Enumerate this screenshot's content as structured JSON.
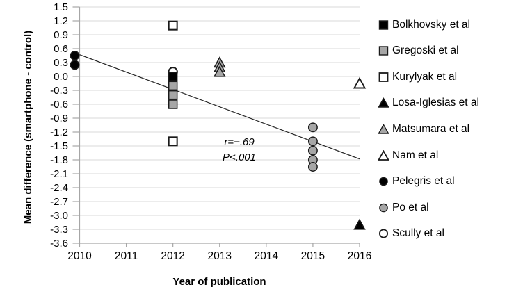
{
  "chart_data": {
    "type": "scatter",
    "title": "",
    "xlabel": "Year of publication",
    "ylabel": "Mean difference (smartphone - control)",
    "xlim": [
      2010,
      2016
    ],
    "ylim": [
      -3.6,
      1.5
    ],
    "x_ticks": [
      2010,
      2011,
      2012,
      2013,
      2014,
      2015,
      2016
    ],
    "y_ticks": [
      1.5,
      1.2,
      0.9,
      0.6,
      0.3,
      0.0,
      -0.3,
      -0.6,
      -0.9,
      -1.2,
      -1.5,
      -1.8,
      -2.1,
      -2.4,
      -2.7,
      -3.0,
      -3.3,
      -3.6
    ],
    "grid": "horizontal",
    "legend_position": "right",
    "series": [
      {
        "name": "Bolkhovsky et al",
        "marker": "square",
        "fill": "#000000",
        "points": [
          [
            2012,
            0.0
          ]
        ]
      },
      {
        "name": "Gregoski et al",
        "marker": "square",
        "fill": "#a6a6a6",
        "points": [
          [
            2012,
            -0.2
          ],
          [
            2012,
            -0.4
          ],
          [
            2012,
            -0.6
          ]
        ]
      },
      {
        "name": "Kurylyak et al",
        "marker": "square",
        "fill": "#ffffff",
        "points": [
          [
            2012,
            1.1
          ],
          [
            2012,
            -1.4
          ]
        ]
      },
      {
        "name": "Losa-Iglesias et al",
        "marker": "triangle",
        "fill": "#000000",
        "points": [
          [
            2016,
            -3.2
          ]
        ]
      },
      {
        "name": "Matsumara et al",
        "marker": "triangle",
        "fill": "#a6a6a6",
        "points": [
          [
            2013,
            0.3
          ],
          [
            2013,
            0.2
          ],
          [
            2013,
            0.1
          ]
        ]
      },
      {
        "name": "Nam et al",
        "marker": "triangle",
        "fill": "#ffffff",
        "points": [
          [
            2016,
            -0.15
          ]
        ]
      },
      {
        "name": "Pelegris et al",
        "marker": "circle",
        "fill": "#000000",
        "points": [
          [
            2010,
            0.45
          ],
          [
            2010,
            0.25
          ]
        ]
      },
      {
        "name": "Po et al",
        "marker": "circle",
        "fill": "#a6a6a6",
        "points": [
          [
            2015,
            -1.1
          ],
          [
            2015,
            -1.4
          ],
          [
            2015,
            -1.6
          ],
          [
            2015,
            -1.8
          ],
          [
            2015,
            -1.95
          ]
        ]
      },
      {
        "name": "Scully et al",
        "marker": "circle",
        "fill": "#ffffff",
        "points": [
          [
            2012,
            0.1
          ]
        ]
      }
    ],
    "trendline": {
      "x1": 2010,
      "y1": 0.47,
      "x2": 2016,
      "y2": -1.78
    },
    "annotation": {
      "line1": "r=−.69",
      "line2": "P<.001"
    },
    "colors": {
      "gridline": "#d9d9d9",
      "axis": "#a6a6a6",
      "marker_stroke": "#1a1a1a",
      "trendline": "#262626",
      "gray_fill": "#a6a6a6",
      "text": "#000000"
    }
  }
}
